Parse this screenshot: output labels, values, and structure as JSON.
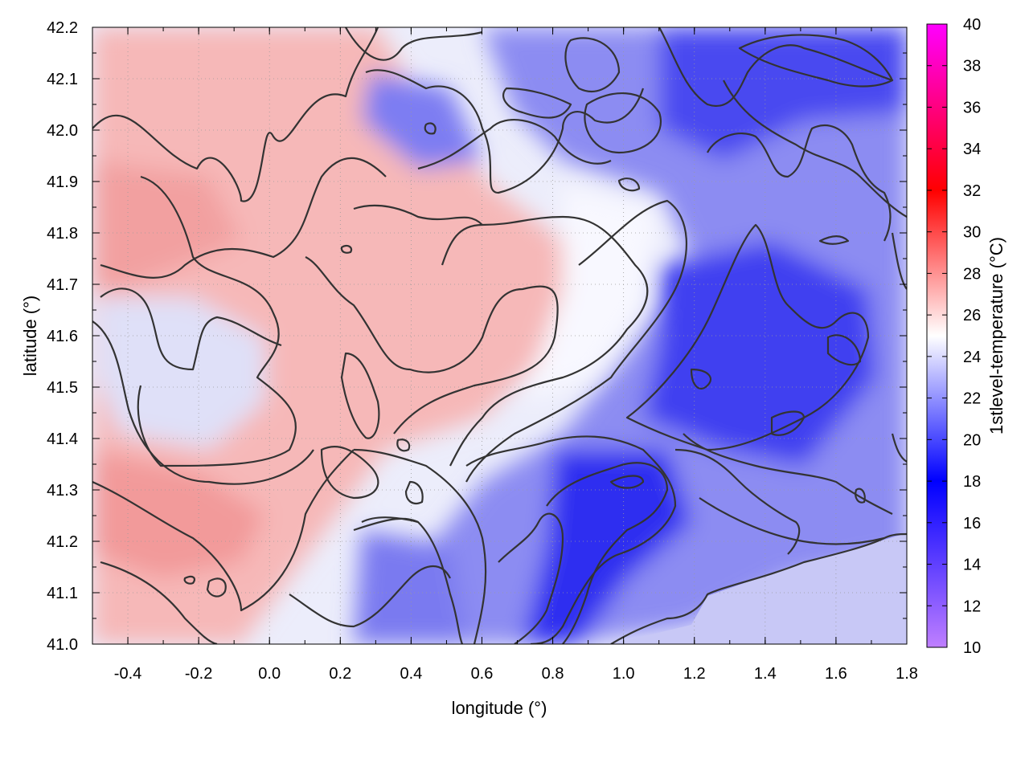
{
  "chart_data": {
    "type": "heatmap",
    "title": "",
    "xlabel": "longitude (°)",
    "ylabel": "latitude (°)",
    "xlim": [
      -0.5,
      1.8
    ],
    "ylim": [
      41.0,
      42.2
    ],
    "x_ticks": [
      "-0.4",
      "-0.2",
      "0.0",
      "0.2",
      "0.4",
      "0.6",
      "0.8",
      "1.0",
      "1.2",
      "1.4",
      "1.6",
      "1.8"
    ],
    "y_ticks": [
      "41.0",
      "41.1",
      "41.2",
      "41.3",
      "41.4",
      "41.5",
      "41.6",
      "41.7",
      "41.8",
      "41.9",
      "42.0",
      "42.1",
      "42.2"
    ],
    "grid": true,
    "contours": true,
    "colorbar": {
      "label": "1stlevel-temperature (°C)",
      "range": [
        10,
        40
      ],
      "ticks": [
        "10",
        "12",
        "14",
        "16",
        "18",
        "20",
        "22",
        "24",
        "26",
        "28",
        "30",
        "32",
        "34",
        "36",
        "38",
        "40"
      ],
      "colors": [
        "#bf7fff",
        "#0000ff",
        "#ffffff",
        "#ff0000",
        "#ff00ff"
      ]
    }
  }
}
